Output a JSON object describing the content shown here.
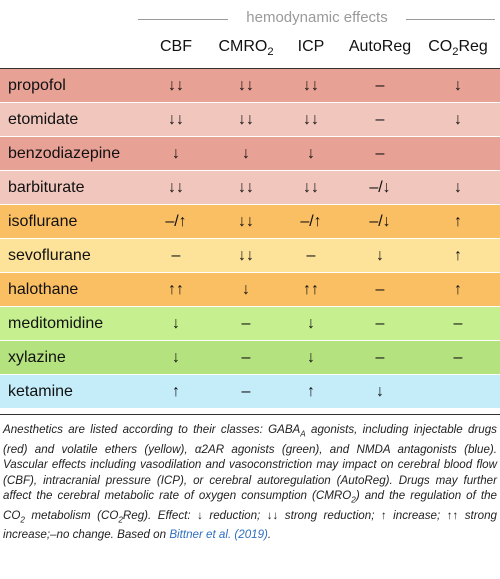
{
  "table": {
    "group_header": "hemodynamic effects",
    "columns": [
      {
        "key": "cbf",
        "label": "CBF"
      },
      {
        "key": "cmro2",
        "label": "CMRO",
        "sub": "2"
      },
      {
        "key": "icp",
        "label": "ICP"
      },
      {
        "key": "autoreg",
        "label": "AutoReg"
      },
      {
        "key": "co2reg",
        "label": "CO",
        "sub": "2",
        "suffix": "Reg"
      }
    ],
    "rows": [
      {
        "drug": "propofol",
        "color": "#e8a195",
        "cbf": "↓↓",
        "cmro2": "↓↓",
        "icp": "↓↓",
        "autoreg": "–",
        "co2reg": "↓"
      },
      {
        "drug": "etomidate",
        "color": "#f0c6bd",
        "cbf": "↓↓",
        "cmro2": "↓↓",
        "icp": "↓↓",
        "autoreg": "–",
        "co2reg": "↓"
      },
      {
        "drug": "benzodiazepine",
        "color": "#e8a195",
        "cbf": "↓",
        "cmro2": "↓",
        "icp": "↓",
        "autoreg": "–",
        "co2reg": ""
      },
      {
        "drug": "barbiturate",
        "color": "#f0c6bd",
        "cbf": "↓↓",
        "cmro2": "↓↓",
        "icp": "↓↓",
        "autoreg": "–/↓",
        "co2reg": "↓"
      },
      {
        "drug": "isoflurane",
        "color": "#fbbf63",
        "cbf": "–/↑",
        "cmro2": "↓↓",
        "icp": "–/↑",
        "autoreg": "–/↓",
        "co2reg": "↑"
      },
      {
        "drug": "sevoflurane",
        "color": "#fde29a",
        "cbf": "–",
        "cmro2": "↓↓",
        "icp": "–",
        "autoreg": "↓",
        "co2reg": "↑"
      },
      {
        "drug": "halothane",
        "color": "#fbbf63",
        "cbf": "↑↑",
        "cmro2": "↓",
        "icp": "↑↑",
        "autoreg": "–",
        "co2reg": "↑"
      },
      {
        "drug": "meditomidine",
        "color": "#c6f08f",
        "cbf": "↓",
        "cmro2": "–",
        "icp": "↓",
        "autoreg": "–",
        "co2reg": "–"
      },
      {
        "drug": "xylazine",
        "color": "#b4e27f",
        "cbf": "↓",
        "cmro2": "–",
        "icp": "↓",
        "autoreg": "–",
        "co2reg": "–"
      },
      {
        "drug": "ketamine",
        "color": "#c4ecf9",
        "cbf": "↑",
        "cmro2": "–",
        "icp": "↑",
        "autoreg": "↓",
        "co2reg": ""
      }
    ]
  },
  "caption": {
    "part1": "Anesthetics are listed according to their classes: GABA",
    "part1_sub": "A",
    "part2": " agonists, including injectable drugs (red) and volatile ethers (yellow), α2AR agonists (green), and NMDA antagonists (blue). Vascular effects including vasodilation and vasoconstriction may impact on cerebral blood flow (CBF), intracranial pressure (ICP), or cerebral autoregulation (AutoReg). Drugs may further affect the cerebral metabolic rate of oxygen consumption (CMRO",
    "part2_sub": "2",
    "part3": ") and the regulation of the CO",
    "part3_sub": "2",
    "part4": " metabolism (CO",
    "part4_sub": "2",
    "part5": "Reg). Effect: ↓ reduction; ↓↓ strong reduction; ↑ increase; ↑↑ strong increase;–no change. Based on ",
    "link": "Bittner et al. (2019)",
    "part6": "."
  }
}
